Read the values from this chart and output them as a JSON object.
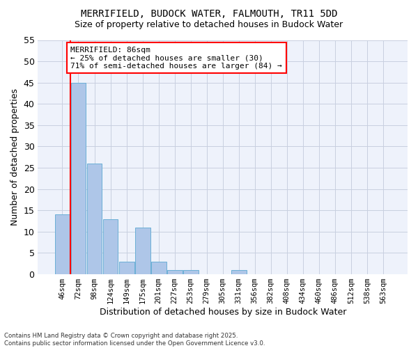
{
  "title1": "MERRIFIELD, BUDOCK WATER, FALMOUTH, TR11 5DD",
  "title2": "Size of property relative to detached houses in Budock Water",
  "xlabel": "Distribution of detached houses by size in Budock Water",
  "ylabel": "Number of detached properties",
  "bar_values": [
    14,
    45,
    26,
    13,
    3,
    11,
    3,
    1,
    1,
    0,
    0,
    1,
    0,
    0,
    0,
    0,
    0,
    0,
    0,
    0,
    0
  ],
  "bin_labels": [
    "46sqm",
    "72sqm",
    "98sqm",
    "124sqm",
    "149sqm",
    "175sqm",
    "201sqm",
    "227sqm",
    "253sqm",
    "279sqm",
    "305sqm",
    "331sqm",
    "356sqm",
    "382sqm",
    "408sqm",
    "434sqm",
    "460sqm",
    "486sqm",
    "512sqm",
    "538sqm",
    "563sqm"
  ],
  "bar_color": "#aec6e8",
  "bar_edge_color": "#6aafd6",
  "vline_color": "red",
  "ylim": [
    0,
    55
  ],
  "yticks": [
    0,
    5,
    10,
    15,
    20,
    25,
    30,
    35,
    40,
    45,
    50,
    55
  ],
  "annotation_text": "MERRIFIELD: 86sqm\n← 25% of detached houses are smaller (30)\n71% of semi-detached houses are larger (84) →",
  "bg_color": "#eef2fb",
  "grid_color": "#c8cfe0",
  "footer_text": "Contains HM Land Registry data © Crown copyright and database right 2025.\nContains public sector information licensed under the Open Government Licence v3.0."
}
